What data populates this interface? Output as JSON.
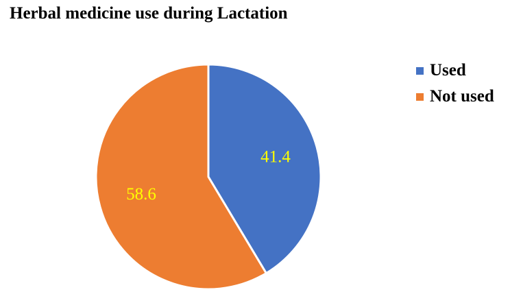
{
  "chart_data": {
    "type": "pie",
    "title": "Herbal medicine use during Lactation",
    "categories": [
      "Used",
      "Not used"
    ],
    "values": [
      41.4,
      58.6
    ],
    "data_labels": [
      "41.4",
      "58.6"
    ],
    "colors": [
      "#4472C4",
      "#ED7D31"
    ],
    "label_color": "#FFFF00",
    "legend_position": "right",
    "start_angle_deg": 0,
    "direction": "clockwise"
  }
}
